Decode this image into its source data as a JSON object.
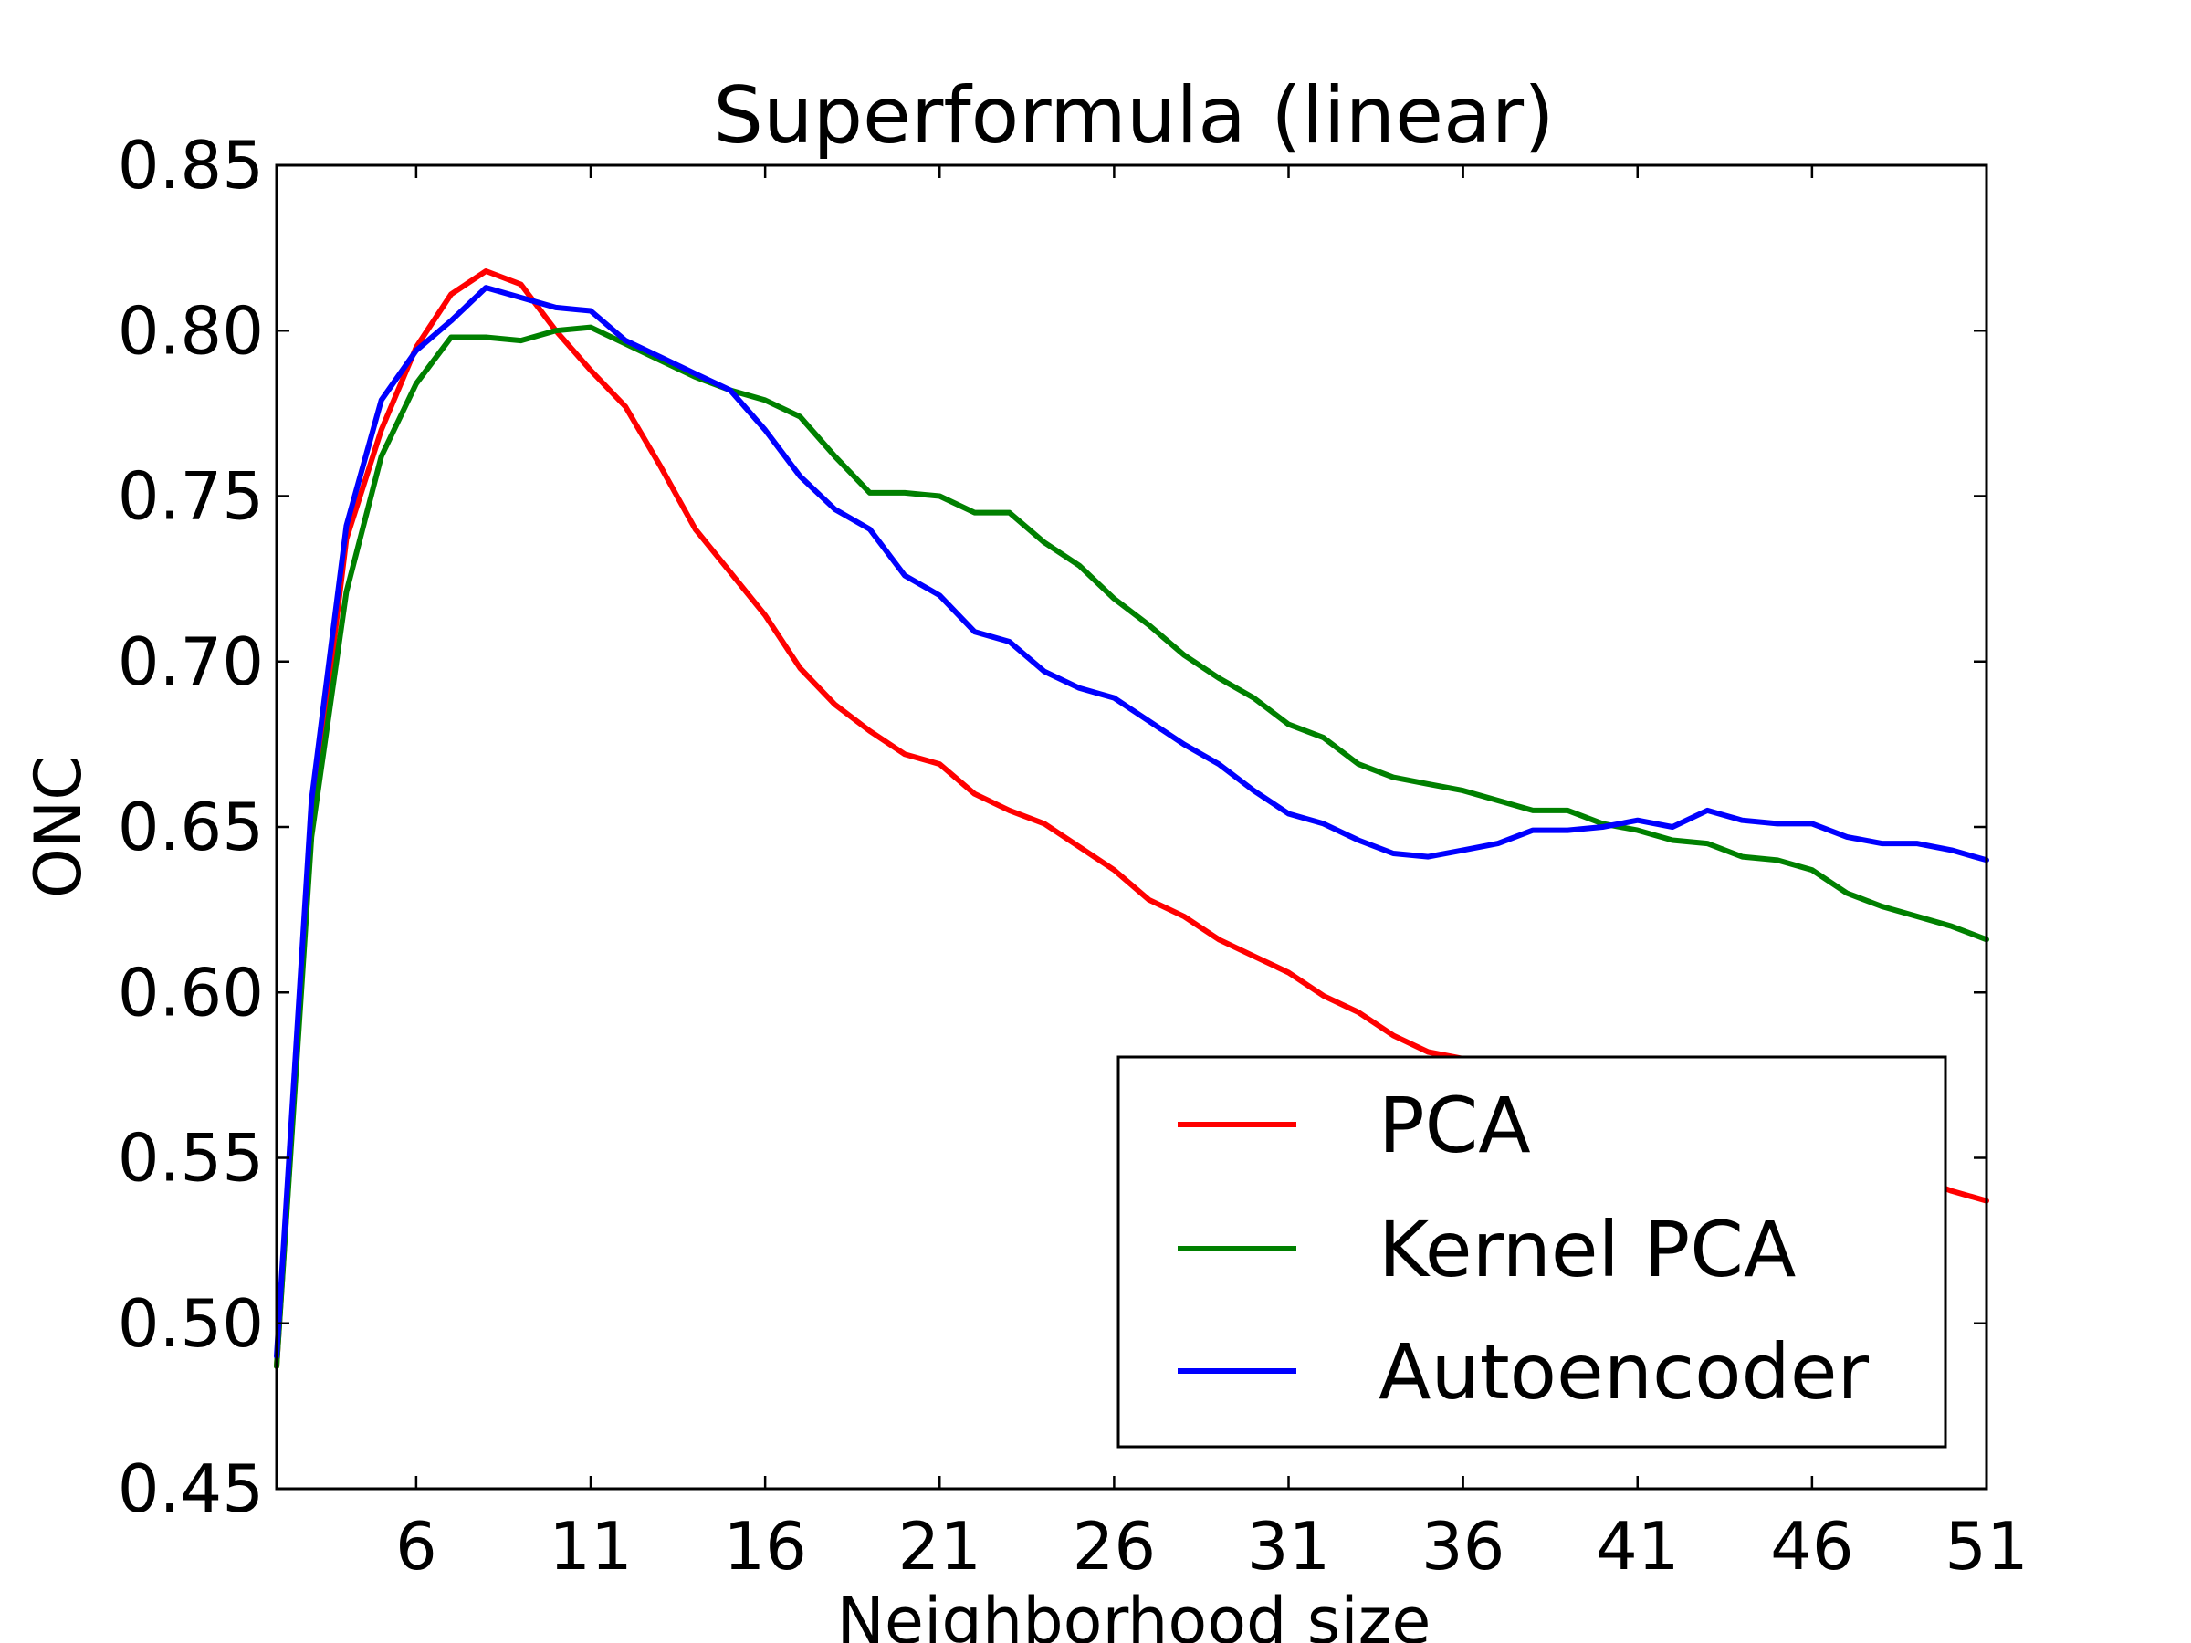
{
  "chart_data": {
    "type": "line",
    "title": "Superformula (linear)",
    "xlabel": "Neighborhood size",
    "ylabel": "ONC",
    "xlim": [
      2,
      51
    ],
    "ylim": [
      0.45,
      0.85
    ],
    "xticks": [
      6,
      11,
      16,
      21,
      26,
      31,
      36,
      41,
      46,
      51
    ],
    "yticks": [
      0.45,
      0.5,
      0.55,
      0.6,
      0.65,
      0.7,
      0.75,
      0.8,
      0.85
    ],
    "ytick_labels": [
      "0.45",
      "0.50",
      "0.55",
      "0.60",
      "0.65",
      "0.70",
      "0.75",
      "0.80",
      "0.85"
    ],
    "grid": false,
    "legend_position": "lower-right",
    "x": [
      2,
      3,
      4,
      5,
      6,
      7,
      8,
      9,
      10,
      11,
      12,
      13,
      14,
      15,
      16,
      17,
      18,
      19,
      20,
      21,
      22,
      23,
      24,
      25,
      26,
      27,
      28,
      29,
      30,
      31,
      32,
      33,
      34,
      35,
      36,
      37,
      38,
      39,
      40,
      41,
      42,
      43,
      44,
      45,
      46,
      47,
      48,
      49,
      50,
      51
    ],
    "series": [
      {
        "name": "PCA",
        "color": "#ff0000",
        "values": [
          0.487,
          0.65,
          0.737,
          0.77,
          0.795,
          0.811,
          0.818,
          0.814,
          0.8,
          0.788,
          0.777,
          0.759,
          0.74,
          0.727,
          0.714,
          0.698,
          0.687,
          0.679,
          0.672,
          0.669,
          0.66,
          0.655,
          0.651,
          0.644,
          0.637,
          0.628,
          0.623,
          0.616,
          0.611,
          0.606,
          0.599,
          0.594,
          0.587,
          0.582,
          0.58,
          0.579,
          0.578,
          0.577,
          0.576,
          0.575,
          0.573,
          0.57,
          0.567,
          0.563,
          0.558,
          0.553,
          0.548,
          0.544,
          0.54,
          0.537
        ]
      },
      {
        "name": "Kernel PCA",
        "color": "#008000",
        "values": [
          0.487,
          0.647,
          0.721,
          0.762,
          0.784,
          0.798,
          0.798,
          0.797,
          0.8,
          0.801,
          0.796,
          0.791,
          0.786,
          0.782,
          0.779,
          0.774,
          0.762,
          0.751,
          0.751,
          0.75,
          0.745,
          0.745,
          0.736,
          0.729,
          0.719,
          0.711,
          0.702,
          0.695,
          0.689,
          0.681,
          0.677,
          0.669,
          0.665,
          0.663,
          0.661,
          0.658,
          0.655,
          0.655,
          0.651,
          0.649,
          0.646,
          0.645,
          0.641,
          0.64,
          0.637,
          0.63,
          0.626,
          0.623,
          0.62,
          0.616
        ]
      },
      {
        "name": "Autoencoder",
        "color": "#0000ff",
        "values": [
          0.49,
          0.658,
          0.741,
          0.779,
          0.794,
          0.803,
          0.813,
          0.81,
          0.807,
          0.806,
          0.797,
          0.792,
          0.787,
          0.782,
          0.77,
          0.756,
          0.746,
          0.74,
          0.726,
          0.72,
          0.709,
          0.706,
          0.697,
          0.692,
          0.689,
          0.682,
          0.675,
          0.669,
          0.661,
          0.654,
          0.651,
          0.646,
          0.642,
          0.641,
          0.643,
          0.645,
          0.649,
          0.649,
          0.65,
          0.652,
          0.65,
          0.655,
          0.652,
          0.651,
          0.651,
          0.647,
          0.645,
          0.645,
          0.643,
          0.64
        ]
      }
    ]
  }
}
